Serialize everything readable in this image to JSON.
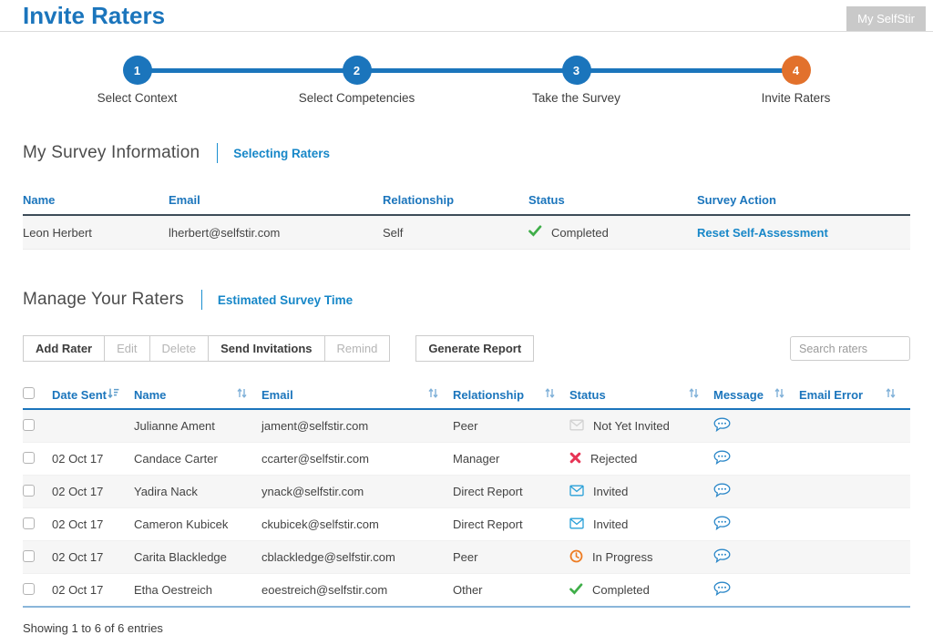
{
  "page": {
    "title": "Invite Raters",
    "account_button": "My SelfStir",
    "footer": "Showing 1 to 6 of 6 entries"
  },
  "colors": {
    "primary_blue": "#1b75bc",
    "link_blue": "#1787c8",
    "step_current_orange": "#e2712c",
    "status_green": "#3fae49",
    "status_red": "#e73455",
    "status_orange": "#ed7c23",
    "envelope_blue": "#29a0d8",
    "envelope_gray": "#d2d2d2",
    "bubble_blue": "#2b87c8",
    "account_button_gray": "#c9c9c9"
  },
  "stepper": {
    "steps": [
      {
        "number": "1",
        "label": "Select Context",
        "state": "done"
      },
      {
        "number": "2",
        "label": "Select Competencies",
        "state": "done"
      },
      {
        "number": "3",
        "label": "Take the Survey",
        "state": "done"
      },
      {
        "number": "4",
        "label": "Invite Raters",
        "state": "current"
      }
    ]
  },
  "survey_info": {
    "heading": "My Survey Information",
    "link": "Selecting Raters",
    "columns": [
      "Name",
      "Email",
      "Relationship",
      "Status",
      "Survey Action"
    ],
    "row": {
      "name": "Leon Herbert",
      "email": "lherbert@selfstir.com",
      "relationship": "Self",
      "status": "Completed",
      "status_icon": "check-icon",
      "action": "Reset Self-Assessment"
    }
  },
  "manage": {
    "heading": "Manage Your Raters",
    "link": "Estimated Survey Time",
    "buttons": [
      {
        "label": "Add Rater",
        "enabled": true
      },
      {
        "label": "Edit",
        "enabled": false
      },
      {
        "label": "Delete",
        "enabled": false
      },
      {
        "label": "Send Invitations",
        "enabled": true
      },
      {
        "label": "Remind",
        "enabled": false
      }
    ],
    "generate_report": "Generate Report",
    "search_placeholder": "Search raters"
  },
  "raters_table": {
    "columns": [
      "Date Sent",
      "Name",
      "Email",
      "Relationship",
      "Status",
      "Message",
      "Email Error"
    ],
    "rows": [
      {
        "date": "",
        "name": "Julianne Ament",
        "email": "jament@selfstir.com",
        "relationship": "Peer",
        "status": "Not Yet Invited",
        "status_icon": "envelope-gray-icon",
        "message_icon": "message-bubble-icon",
        "email_error": ""
      },
      {
        "date": "02 Oct 17",
        "name": "Candace Carter",
        "email": "ccarter@selfstir.com",
        "relationship": "Manager",
        "status": "Rejected",
        "status_icon": "cross-icon",
        "message_icon": "message-bubble-icon",
        "email_error": ""
      },
      {
        "date": "02 Oct 17",
        "name": "Yadira Nack",
        "email": "ynack@selfstir.com",
        "relationship": "Direct Report",
        "status": "Invited",
        "status_icon": "envelope-blue-icon",
        "message_icon": "message-bubble-icon",
        "email_error": ""
      },
      {
        "date": "02 Oct 17",
        "name": "Cameron Kubicek",
        "email": "ckubicek@selfstir.com",
        "relationship": "Direct Report",
        "status": "Invited",
        "status_icon": "envelope-blue-icon",
        "message_icon": "message-bubble-icon",
        "email_error": ""
      },
      {
        "date": "02 Oct 17",
        "name": "Carita Blackledge",
        "email": "cblackledge@selfstir.com",
        "relationship": "Peer",
        "status": "In Progress",
        "status_icon": "clock-icon",
        "message_icon": "message-bubble-icon",
        "email_error": ""
      },
      {
        "date": "02 Oct 17",
        "name": "Etha Oestreich",
        "email": "eoestreich@selfstir.com",
        "relationship": "Other",
        "status": "Completed",
        "status_icon": "check-icon",
        "message_icon": "message-bubble-icon",
        "email_error": ""
      }
    ]
  }
}
